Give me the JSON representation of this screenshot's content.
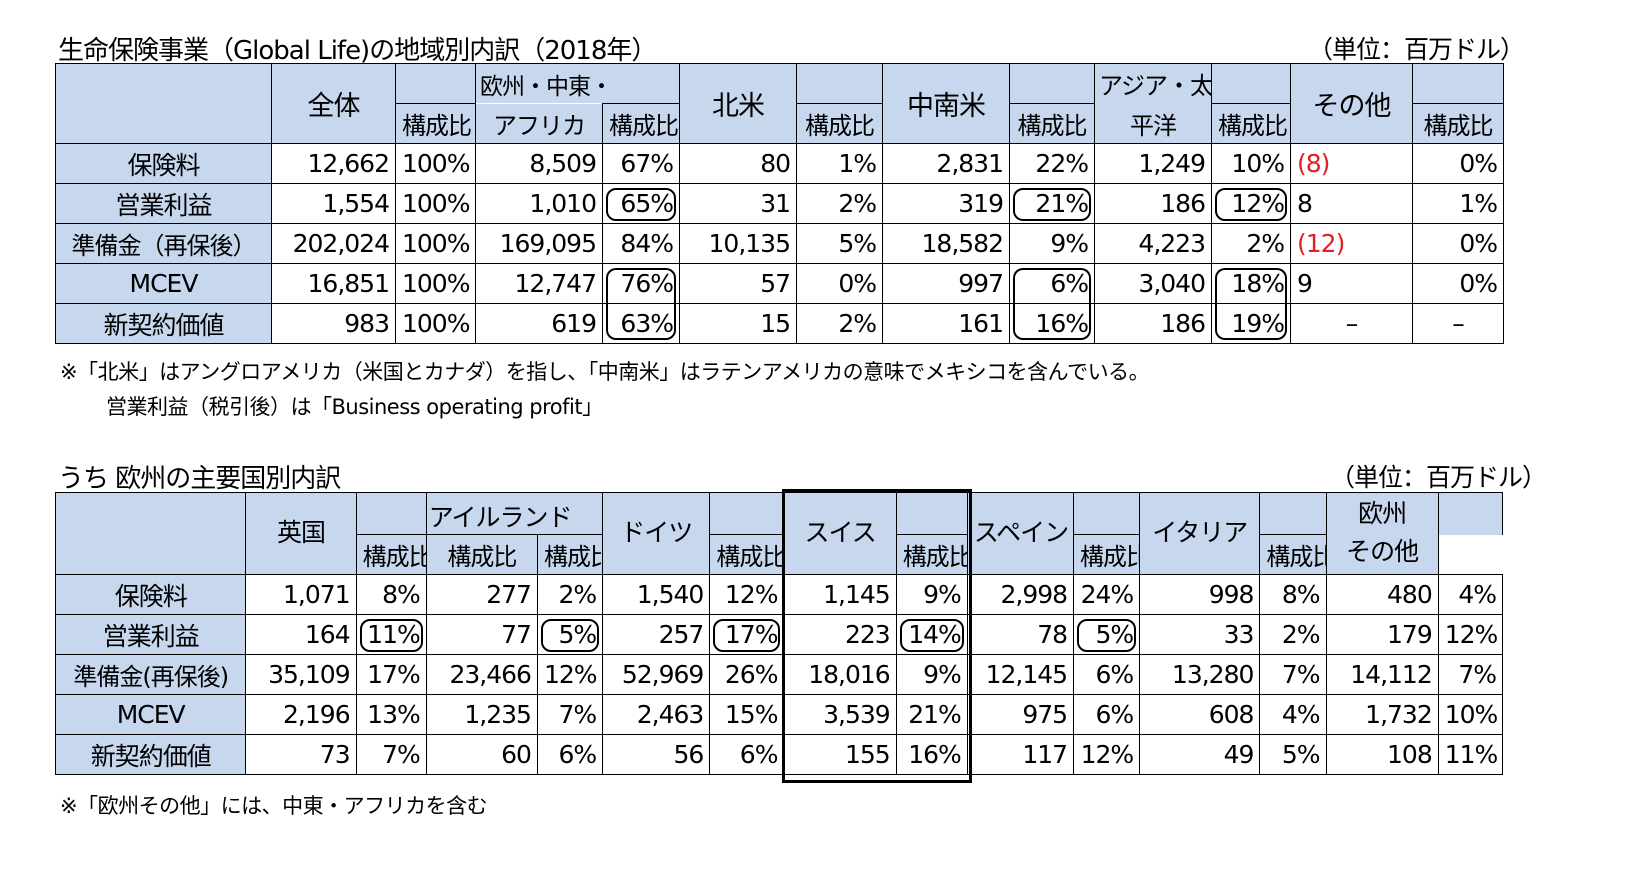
{
  "table1": {
    "title": "生命保険事業（Global Life)の地域別内訳（2018年）",
    "unit": "（単位：百万ドル）",
    "header": {
      "total": "全体",
      "ratio": "構成比",
      "emea_line1": "欧州・中東・",
      "emea_line2": "アフリカ",
      "north_america": "北米",
      "latin_america": "中南米",
      "apac_line1": "アジア・太",
      "apac_line2": "平洋",
      "other": "その他"
    },
    "rows": [
      {
        "label": "保険料",
        "cells": [
          "12,662",
          "100%",
          "8,509",
          "67%",
          "80",
          "1%",
          "2,831",
          "22%",
          "1,249",
          "10%",
          "(8)",
          "0%"
        ]
      },
      {
        "label": "営業利益",
        "cells": [
          "1,554",
          "100%",
          "1,010",
          "65%",
          "31",
          "2%",
          "319",
          "21%",
          "186",
          "12%",
          "8",
          "1%"
        ]
      },
      {
        "label": "準備金（再保後）",
        "cells": [
          "202,024",
          "100%",
          "169,095",
          "84%",
          "10,135",
          "5%",
          "18,582",
          "9%",
          "4,223",
          "2%",
          "(12)",
          "0%"
        ]
      },
      {
        "label": "MCEV",
        "cells": [
          "16,851",
          "100%",
          "12,747",
          "76%",
          "57",
          "0%",
          "997",
          "6%",
          "3,040",
          "18%",
          "9",
          "0%"
        ]
      },
      {
        "label": "新契約価値",
        "cells": [
          "983",
          "100%",
          "619",
          "63%",
          "15",
          "2%",
          "161",
          "16%",
          "186",
          "19%",
          "–",
          "–"
        ]
      }
    ],
    "note_line1": "※「北米」はアングロアメリカ（米国とカナダ）を指し、「中南米」はラテンアメリカの意味でメキシコを含んでいる。",
    "note_line2": "営業利益（税引後）は「Business operating profit」"
  },
  "table2": {
    "title": "うち 欧州の主要国別内訳",
    "unit": "（単位：百万ドル）",
    "header": {
      "uk": "英国",
      "ireland": "アイルランド",
      "germany": "ドイツ",
      "switzerland": "スイス",
      "spain": "スペイン",
      "italy": "イタリア",
      "other_line1": "欧州",
      "other_line2": "その他",
      "ratio": "構成比"
    },
    "rows": [
      {
        "label": "保険料",
        "cells": [
          "1,071",
          "8%",
          "277",
          "2%",
          "1,540",
          "12%",
          "1,145",
          "9%",
          "2,998",
          "24%",
          "998",
          "8%",
          "480",
          "4%"
        ]
      },
      {
        "label": "営業利益",
        "cells": [
          "164",
          "11%",
          "77",
          "5%",
          "257",
          "17%",
          "223",
          "14%",
          "78",
          "5%",
          "33",
          "2%",
          "179",
          "12%"
        ]
      },
      {
        "label": "準備金(再保後)",
        "cells": [
          "35,109",
          "17%",
          "23,466",
          "12%",
          "52,969",
          "26%",
          "18,016",
          "9%",
          "12,145",
          "6%",
          "13,280",
          "7%",
          "14,112",
          "7%"
        ]
      },
      {
        "label": "MCEV",
        "cells": [
          "2,196",
          "13%",
          "1,235",
          "7%",
          "2,463",
          "15%",
          "3,539",
          "21%",
          "975",
          "6%",
          "608",
          "4%",
          "1,732",
          "10%"
        ]
      },
      {
        "label": "新契約価値",
        "cells": [
          "73",
          "7%",
          "60",
          "6%",
          "56",
          "6%",
          "155",
          "16%",
          "117",
          "12%",
          "49",
          "5%",
          "108",
          "11%"
        ]
      }
    ],
    "note": "※「欧州その他」には、中東・アフリカを含む"
  },
  "colors": {
    "header_bg": "#c7d7ee",
    "negative": "#e31e24"
  }
}
